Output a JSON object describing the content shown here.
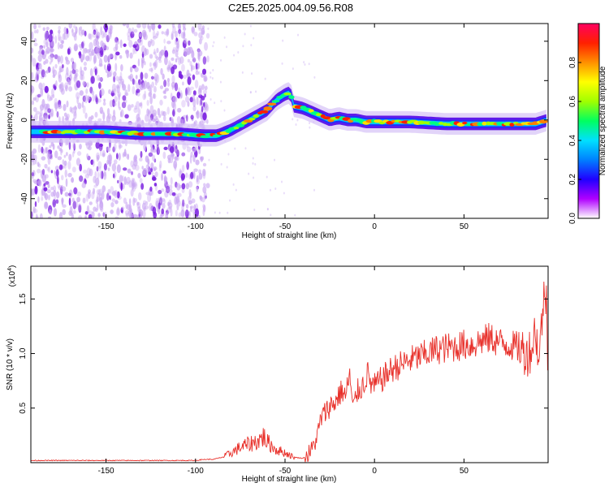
{
  "title": "C2E5.2025.004.09.56.R08",
  "chart_data": [
    {
      "type": "heatmap",
      "xlabel": "Height of straight line (km)",
      "ylabel": "Frequency (Hz)",
      "xlim": [
        -192,
        97
      ],
      "ylim": [
        -50,
        49
      ],
      "x_ticks": [
        -150,
        -100,
        -50,
        0,
        50
      ],
      "y_ticks": [
        40,
        20,
        0,
        -20,
        -40
      ],
      "ridge": {
        "x": [
          -190,
          -170,
          -150,
          -130,
          -110,
          -95,
          -88,
          -80,
          -70,
          -60,
          -55,
          -50,
          -47,
          -45,
          -40,
          -35,
          -30,
          -25,
          -20,
          -15,
          -10,
          -5,
          0,
          10,
          20,
          40,
          60,
          80,
          90,
          97
        ],
        "y": [
          -6,
          -6,
          -6,
          -7,
          -7,
          -8,
          -8,
          -5,
          0,
          5,
          10,
          13,
          14,
          7,
          6,
          4,
          2,
          0,
          1,
          0,
          0,
          -1,
          -1,
          -1,
          -1,
          -2,
          -2,
          -2,
          -2,
          0
        ]
      },
      "colorbar": {
        "label": "Normalized spectral amplitude",
        "range": [
          0,
          1
        ],
        "ticks": [
          0.0,
          0.2,
          0.4,
          0.6,
          0.8
        ],
        "colors": [
          "#ffffff",
          "#b000ff",
          "#2000ff",
          "#0080ff",
          "#00e0ff",
          "#00ff60",
          "#a0ff00",
          "#ffff00",
          "#ff9000",
          "#ff2000",
          "#ff0060"
        ]
      }
    },
    {
      "type": "line",
      "xlabel": "Height of straight line (km)",
      "ylabel": "SNR (10 * v/v)",
      "y_multiplier": "(x10",
      "y_multiplier_exp": "4",
      "y_multiplier_close": ")",
      "xlim": [
        -192,
        97
      ],
      "ylim": [
        0,
        1.8
      ],
      "x_ticks": [
        -150,
        -100,
        -50,
        0,
        50
      ],
      "y_ticks": [
        0.5,
        1.0,
        1.5
      ],
      "color": "#e8302a",
      "series": [
        {
          "x": [
            -192,
            -170,
            -150,
            -130,
            -110,
            -100,
            -95,
            -90,
            -85,
            -80,
            -75,
            -70,
            -65,
            -62,
            -60,
            -55,
            -50,
            -45,
            -40,
            -38,
            -35,
            -32,
            -30,
            -28,
            -25,
            -22,
            -20,
            -18,
            -16,
            -14,
            -12,
            -10,
            -8,
            -6,
            -4,
            -2,
            0,
            5,
            10,
            15,
            20,
            25,
            30,
            35,
            40,
            45,
            50,
            55,
            60,
            65,
            70,
            75,
            80,
            85,
            88,
            90,
            92,
            94,
            96,
            97
          ],
          "y": [
            0.02,
            0.02,
            0.02,
            0.02,
            0.02,
            0.02,
            0.03,
            0.03,
            0.05,
            0.09,
            0.14,
            0.17,
            0.2,
            0.24,
            0.19,
            0.12,
            0.09,
            0.05,
            0.04,
            0.06,
            0.12,
            0.24,
            0.4,
            0.45,
            0.52,
            0.55,
            0.62,
            0.66,
            0.6,
            0.82,
            0.48,
            0.64,
            0.68,
            0.72,
            0.82,
            0.72,
            0.7,
            0.78,
            0.86,
            0.9,
            0.94,
            0.97,
            1.0,
            1.04,
            1.05,
            1.06,
            1.08,
            1.08,
            1.12,
            1.14,
            1.1,
            1.08,
            1.06,
            1.0,
            1.05,
            1.25,
            0.9,
            1.45,
            1.55,
            0.85
          ]
        }
      ]
    }
  ]
}
